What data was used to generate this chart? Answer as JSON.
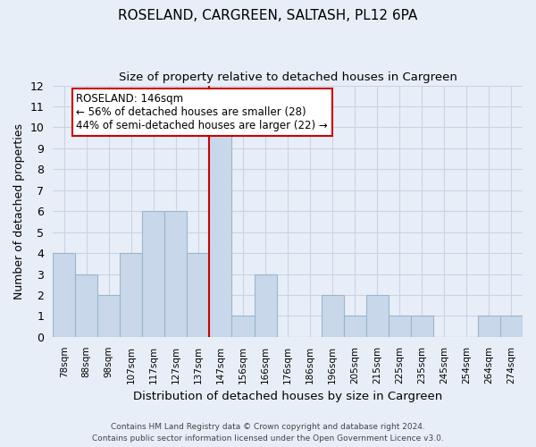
{
  "title": "ROSELAND, CARGREEN, SALTASH, PL12 6PA",
  "subtitle": "Size of property relative to detached houses in Cargreen",
  "xlabel": "Distribution of detached houses by size in Cargreen",
  "ylabel": "Number of detached properties",
  "bin_labels": [
    "78sqm",
    "88sqm",
    "98sqm",
    "107sqm",
    "117sqm",
    "127sqm",
    "137sqm",
    "147sqm",
    "156sqm",
    "166sqm",
    "176sqm",
    "186sqm",
    "196sqm",
    "205sqm",
    "215sqm",
    "225sqm",
    "235sqm",
    "245sqm",
    "254sqm",
    "264sqm",
    "274sqm"
  ],
  "bar_heights": [
    4,
    3,
    2,
    4,
    6,
    6,
    4,
    10,
    1,
    3,
    0,
    0,
    2,
    1,
    2,
    1,
    1,
    0,
    0,
    1,
    1
  ],
  "bar_color": "#c8d8ea",
  "bar_edgecolor": "#9ab5cc",
  "highlight_line_index": 7,
  "highlight_line_color": "#cc0000",
  "ylim": [
    0,
    12
  ],
  "yticks": [
    0,
    1,
    2,
    3,
    4,
    5,
    6,
    7,
    8,
    9,
    10,
    11,
    12
  ],
  "annotation_text": "ROSELAND: 146sqm\n← 56% of detached houses are smaller (28)\n44% of semi-detached houses are larger (22) →",
  "annotation_box_facecolor": "#ffffff",
  "annotation_box_edgecolor": "#cc0000",
  "footer_line1": "Contains HM Land Registry data © Crown copyright and database right 2024.",
  "footer_line2": "Contains public sector information licensed under the Open Government Licence v3.0.",
  "grid_color": "#c8d4e4",
  "background_color": "#e8eef8"
}
